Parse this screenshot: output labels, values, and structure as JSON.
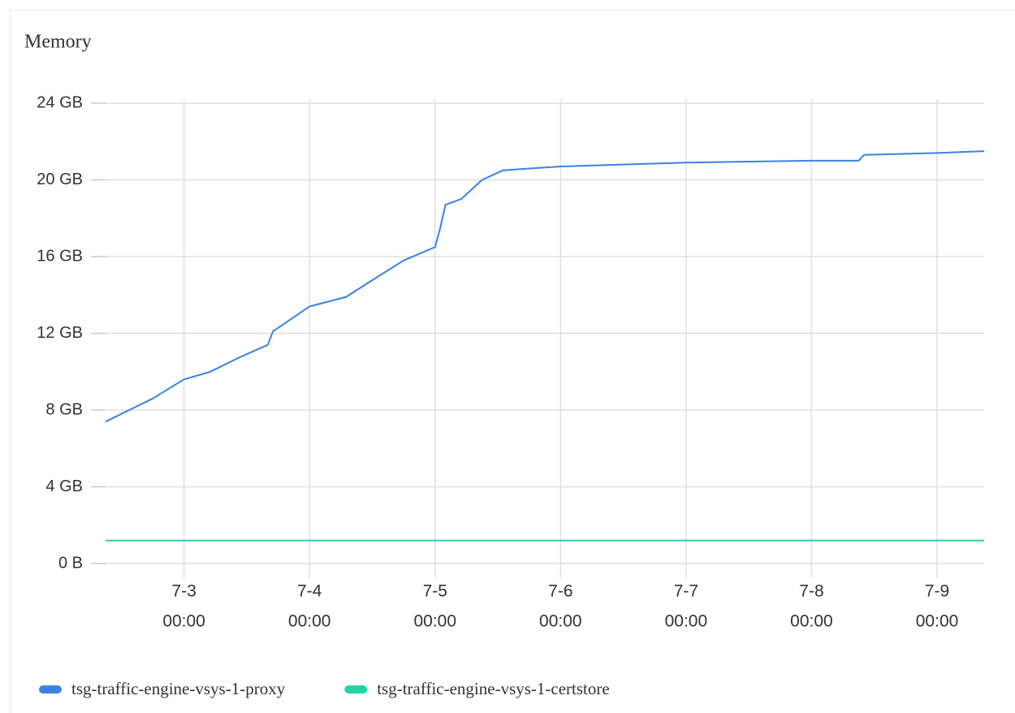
{
  "chart_data": {
    "type": "line",
    "title": "Memory",
    "x": [
      "7-2 09:00",
      "7-2 18:00",
      "7-3 00:00",
      "7-3 05:00",
      "7-3 11:00",
      "7-3 16:00",
      "7-3 17:00",
      "7-4 00:00",
      "7-4 07:00",
      "7-4 11:00",
      "7-4 18:00",
      "7-5 00:00",
      "7-5 01:00",
      "7-5 02:00",
      "7-5 05:00",
      "7-5 09:00",
      "7-5 13:00",
      "7-6 00:00",
      "7-7 00:00",
      "7-8 00:00",
      "7-8 09:00",
      "7-8 10:00",
      "7-9 00:00",
      "7-9 09:00"
    ],
    "series": [
      {
        "name": "tsg-traffic-engine-vsys-1-proxy",
        "color": "#3b82e6",
        "values": [
          7.4,
          8.6,
          9.6,
          10.0,
          10.8,
          11.4,
          12.1,
          13.4,
          13.9,
          14.6,
          15.8,
          16.5,
          17.5,
          18.7,
          19.0,
          20.0,
          20.5,
          20.7,
          20.9,
          21.0,
          21.0,
          21.3,
          21.4,
          21.5
        ]
      },
      {
        "name": "tsg-traffic-engine-vsys-1-certstore",
        "color": "#25d3a6",
        "values": [
          1.2,
          1.2,
          1.2,
          1.2,
          1.2,
          1.2,
          1.2,
          1.2,
          1.2,
          1.2,
          1.2,
          1.2,
          1.2,
          1.2,
          1.2,
          1.2,
          1.2,
          1.2,
          1.2,
          1.2,
          1.2,
          1.2,
          1.2,
          1.2
        ]
      }
    ],
    "xlim": [
      "7-2 09:00",
      "7-9 09:00"
    ],
    "xticks": [
      {
        "value": "7-3 00:00",
        "label": [
          "7-3",
          "00:00"
        ]
      },
      {
        "value": "7-4 00:00",
        "label": [
          "7-4",
          "00:00"
        ]
      },
      {
        "value": "7-5 00:00",
        "label": [
          "7-5",
          "00:00"
        ]
      },
      {
        "value": "7-6 00:00",
        "label": [
          "7-6",
          "00:00"
        ]
      },
      {
        "value": "7-7 00:00",
        "label": [
          "7-7",
          "00:00"
        ]
      },
      {
        "value": "7-8 00:00",
        "label": [
          "7-8",
          "00:00"
        ]
      },
      {
        "value": "7-9 00:00",
        "label": [
          "7-9",
          "00:00"
        ]
      }
    ],
    "ylim": [
      0,
      24
    ],
    "yticks": [
      {
        "value": 0,
        "label": "0 B"
      },
      {
        "value": 4,
        "label": "4 GB"
      },
      {
        "value": 8,
        "label": "8 GB"
      },
      {
        "value": 12,
        "label": "12 GB"
      },
      {
        "value": 16,
        "label": "16 GB"
      },
      {
        "value": 20,
        "label": "20 GB"
      },
      {
        "value": 24,
        "label": "24 GB"
      }
    ],
    "grid": true,
    "legend": "bottom-left"
  }
}
